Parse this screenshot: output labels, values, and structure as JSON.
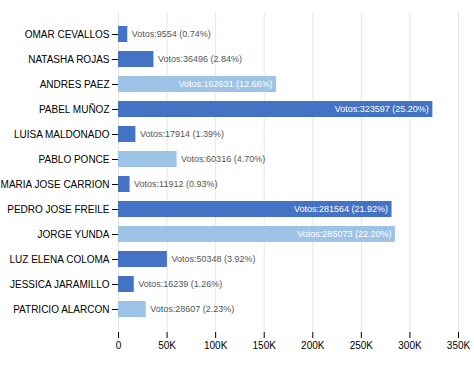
{
  "chart_data": {
    "type": "bar",
    "orientation": "horizontal",
    "categories": [
      "OMAR CEVALLOS",
      "NATASHA ROJAS",
      "ANDRES PAEZ",
      "PABEL MUÑOZ",
      "LUISA MALDONADO",
      "PABLO PONCE",
      "MARIA JOSE CARRION",
      "PEDRO JOSE FREILE",
      "JORGE YUNDA",
      "LUZ ELENA COLOMA",
      "JESSICA JARAMILLO",
      "PATRICIO ALARCON"
    ],
    "values": [
      9554,
      36496,
      162631,
      323597,
      17914,
      60316,
      11912,
      281564,
      285073,
      50348,
      16239,
      28607
    ],
    "value_labels": [
      "Votos:9554 (0.74%)",
      "Votos:36496 (2.84%)",
      "Votos:162631 (12.66%)",
      "Votos:323597 (25.20%)",
      "Votos:17914 (1.39%)",
      "Votos:60316 (4.70%)",
      "Votos:11912 (0.93%)",
      "Votos:281564 (21.92%)",
      "Votos:285073 (22.20%)",
      "Votos:50348 (3.92%)",
      "Votos:16239 (1.26%)",
      "Votos:28607 (2.23%)"
    ],
    "data_labels": true,
    "colors": [
      "#4472C4",
      "#4472C4",
      "#9DC3E6",
      "#4472C4",
      "#4472C4",
      "#9DC3E6",
      "#4472C4",
      "#4472C4",
      "#9DC3E6",
      "#4472C4",
      "#4472C4",
      "#9DC3E6"
    ],
    "xlim": [
      0,
      350000
    ],
    "xticks": [
      0,
      {
        "value": 50000,
        "label": "50K"
      },
      {
        "value": 100000,
        "label": "100K"
      },
      {
        "value": 150000,
        "label": "150K"
      },
      {
        "value": 200000,
        "label": "200K"
      },
      {
        "value": 250000,
        "label": "250K"
      },
      {
        "value": 300000,
        "label": "300K"
      },
      {
        "value": 350000,
        "label": "350K"
      }
    ],
    "grid": true
  }
}
